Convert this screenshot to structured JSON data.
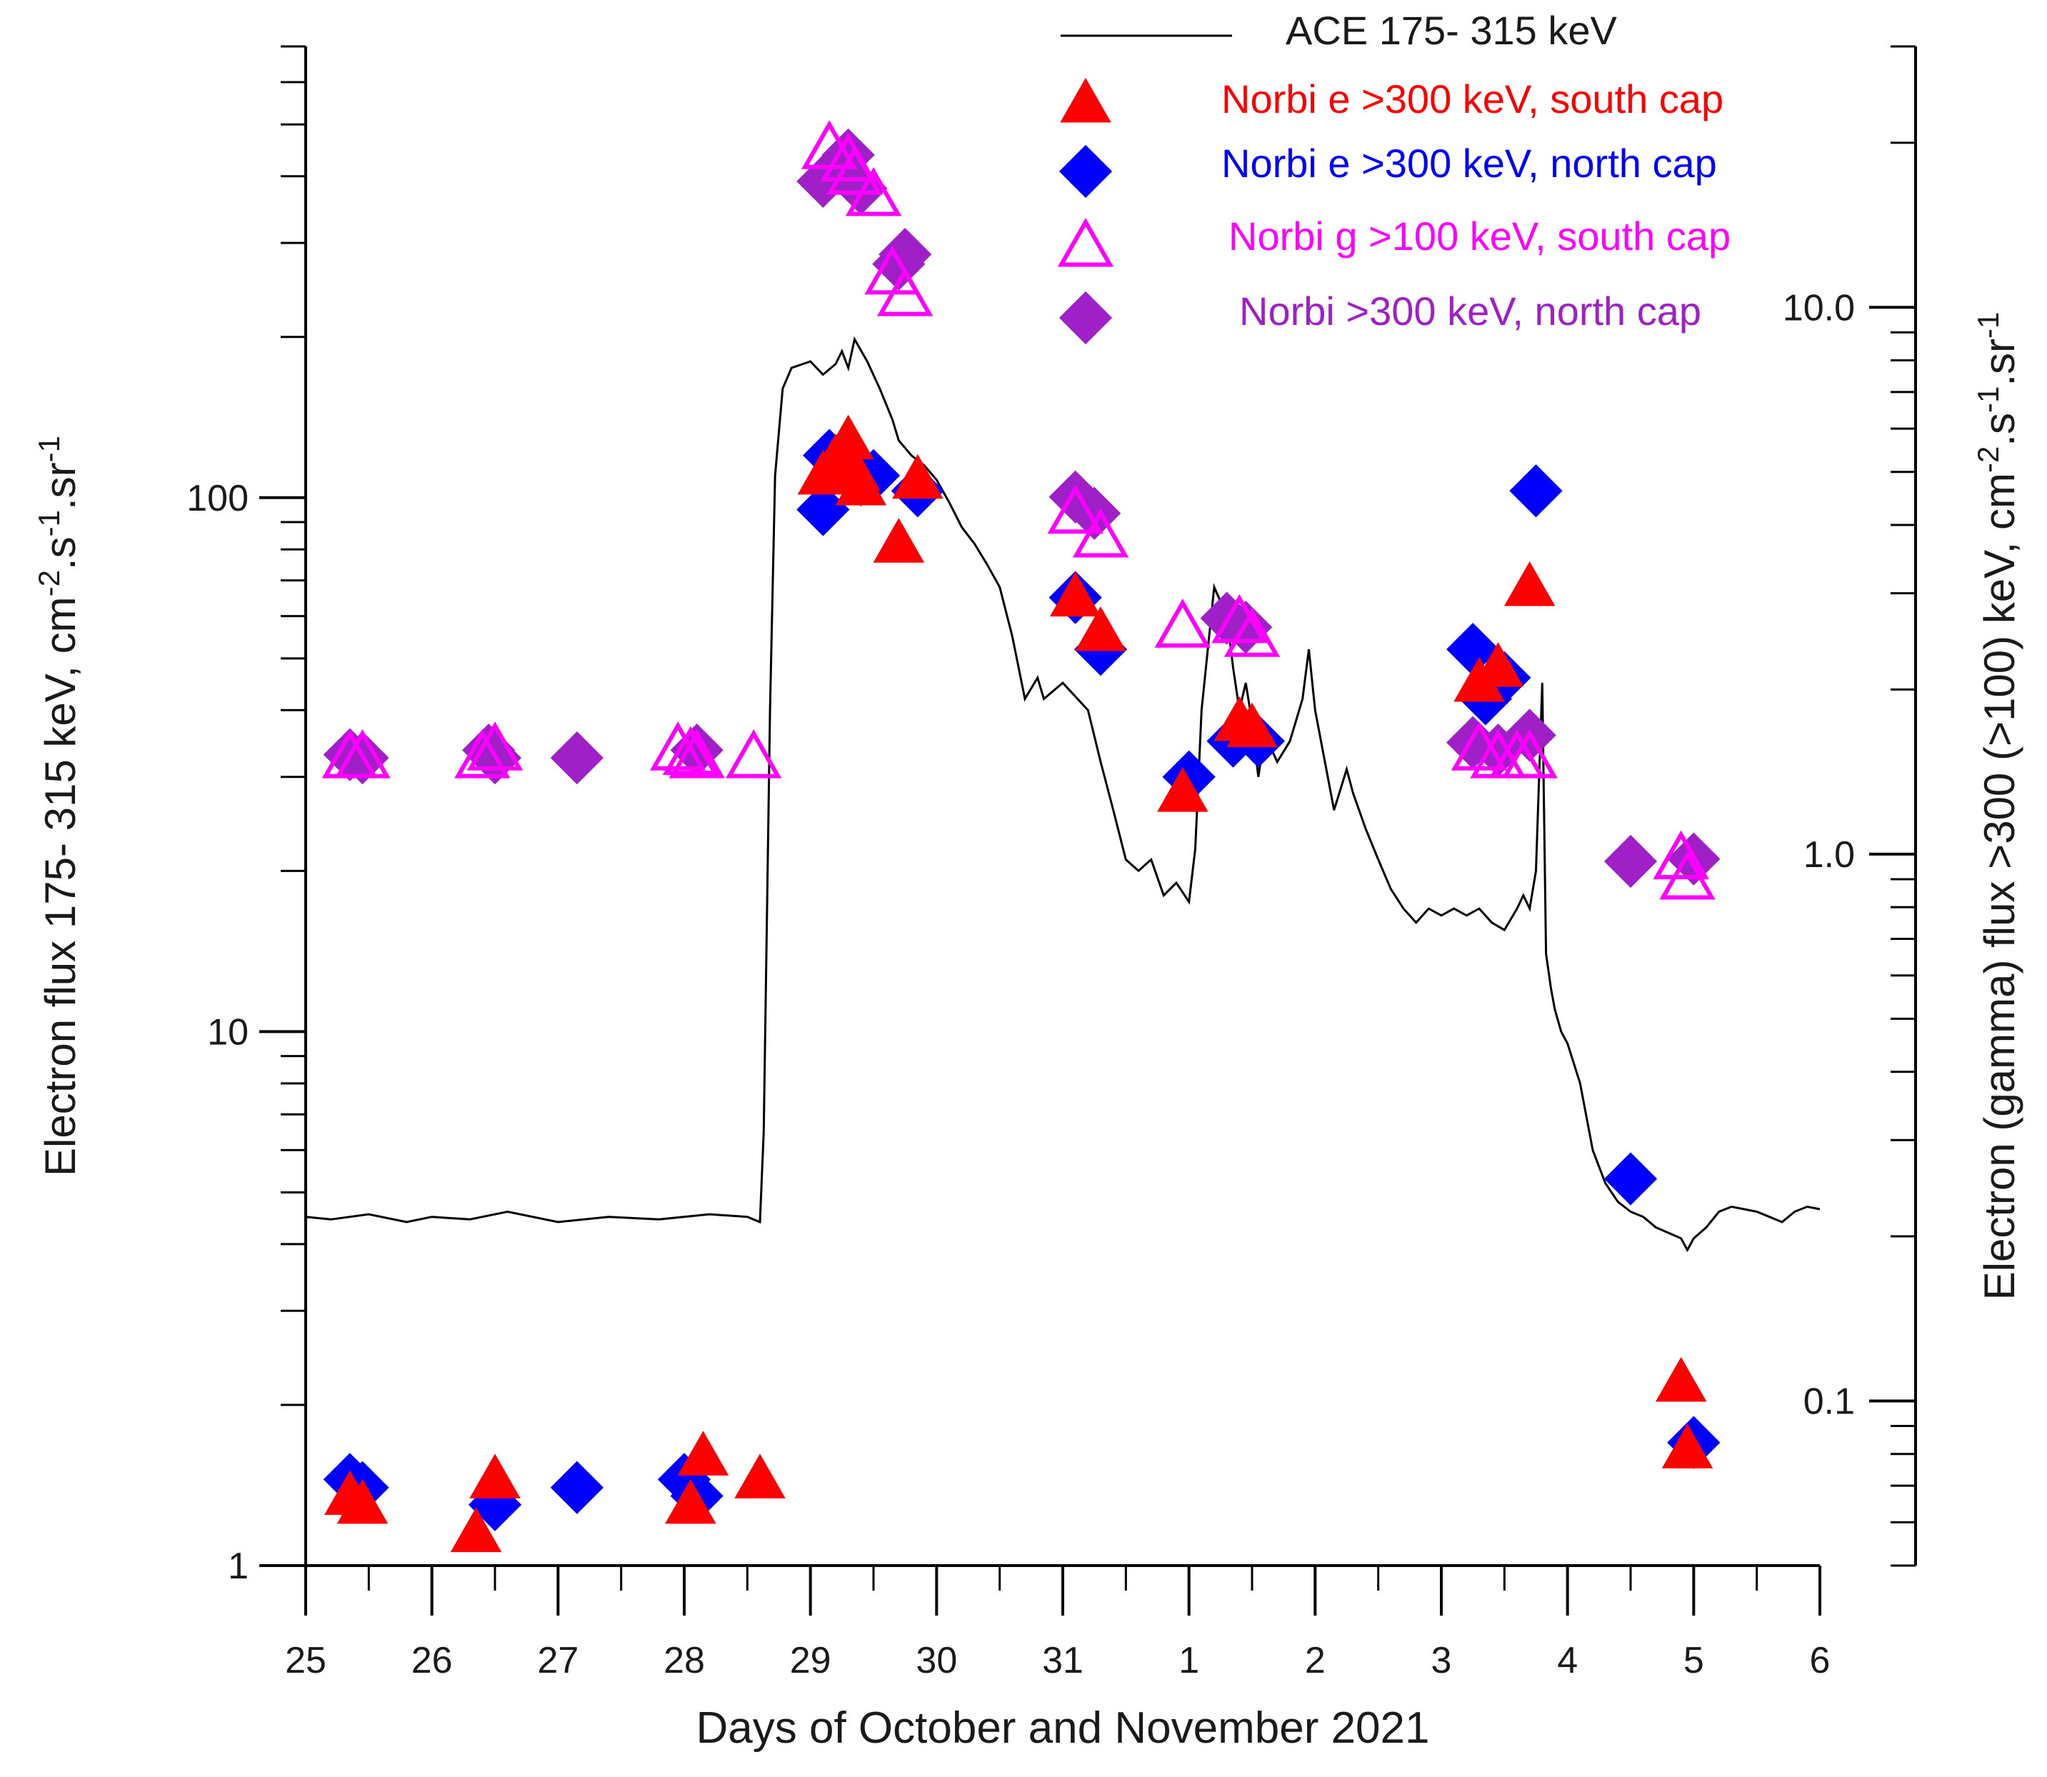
{
  "chart_data": {
    "type": "scatter",
    "xlabel": "Days of October and November 2021",
    "ylabel_left": "Electron flux  175- 315 keV, cm",
    "ylabel_left_units": [
      "-2",
      ".s",
      "-1",
      ".sr",
      "-1"
    ],
    "ylabel_right": "Electron  (gamma) flux  >300 (>100) keV, cm",
    "ylabel_right_units": [
      "-2",
      ".s",
      "-1",
      ".sr",
      "-1"
    ],
    "x_ticks": [
      {
        "x": 0,
        "label": "25"
      },
      {
        "x": 1,
        "label": "26"
      },
      {
        "x": 2,
        "label": "27"
      },
      {
        "x": 3,
        "label": "28"
      },
      {
        "x": 4,
        "label": "29"
      },
      {
        "x": 5,
        "label": "30"
      },
      {
        "x": 6,
        "label": "31"
      },
      {
        "x": 7,
        "label": "1"
      },
      {
        "x": 8,
        "label": "2"
      },
      {
        "x": 9,
        "label": "3"
      },
      {
        "x": 10,
        "label": "4"
      },
      {
        "x": 11,
        "label": "5"
      },
      {
        "x": 12,
        "label": "6"
      }
    ],
    "xlim": [
      0,
      12
    ],
    "y_left": {
      "scale": "log",
      "lim": [
        1,
        700
      ],
      "ticks": [
        {
          "v": 1,
          "label": "1"
        },
        {
          "v": 10,
          "label": "10"
        },
        {
          "v": 100,
          "label": "100"
        }
      ]
    },
    "y_right": {
      "scale": "log",
      "lim": [
        0.05,
        30
      ],
      "ticks": [
        {
          "v": 0.1,
          "label": "0.1"
        },
        {
          "v": 1,
          "label": "1.0"
        },
        {
          "v": 10,
          "label": "10.0"
        }
      ]
    },
    "legend": {
      "position": "top-right",
      "entries": [
        {
          "series": "ace",
          "label": "ACE  175- 315 keV"
        },
        {
          "series": "south_e",
          "label": "Norbi  e >300 keV, south cap"
        },
        {
          "series": "north_e",
          "label": "Norbi e >300 keV, north cap"
        },
        {
          "series": "south_g",
          "label": "Norbi g >100 keV, south cap"
        },
        {
          "series": "north_g",
          "label": "Norbi >300 keV, north cap"
        }
      ]
    },
    "series": {
      "ace": {
        "name": "ACE  175- 315 keV",
        "axis": "left",
        "marker": "line",
        "color": "#000000",
        "points": [
          [
            0.0,
            4.5
          ],
          [
            0.2,
            4.45
          ],
          [
            0.5,
            4.55
          ],
          [
            0.8,
            4.4
          ],
          [
            1.0,
            4.5
          ],
          [
            1.3,
            4.45
          ],
          [
            1.6,
            4.6
          ],
          [
            2.0,
            4.4
          ],
          [
            2.4,
            4.5
          ],
          [
            2.8,
            4.45
          ],
          [
            3.2,
            4.55
          ],
          [
            3.5,
            4.5
          ],
          [
            3.6,
            4.4
          ],
          [
            3.63,
            6.5
          ],
          [
            3.68,
            40
          ],
          [
            3.72,
            110
          ],
          [
            3.78,
            160
          ],
          [
            3.85,
            175
          ],
          [
            4.0,
            180
          ],
          [
            4.1,
            170
          ],
          [
            4.2,
            178
          ],
          [
            4.25,
            188
          ],
          [
            4.3,
            175
          ],
          [
            4.35,
            198
          ],
          [
            4.45,
            180
          ],
          [
            4.55,
            160
          ],
          [
            4.65,
            140
          ],
          [
            4.7,
            128
          ],
          [
            4.8,
            120
          ],
          [
            4.9,
            115
          ],
          [
            5.0,
            108
          ],
          [
            5.1,
            98
          ],
          [
            5.2,
            88
          ],
          [
            5.3,
            82
          ],
          [
            5.4,
            75
          ],
          [
            5.5,
            68
          ],
          [
            5.6,
            55
          ],
          [
            5.7,
            42
          ],
          [
            5.8,
            46
          ],
          [
            5.85,
            42
          ],
          [
            6.0,
            45
          ],
          [
            6.2,
            40
          ],
          [
            6.3,
            32
          ],
          [
            6.4,
            26
          ],
          [
            6.5,
            21
          ],
          [
            6.6,
            20
          ],
          [
            6.7,
            21
          ],
          [
            6.8,
            18
          ],
          [
            6.9,
            19
          ],
          [
            7.0,
            17.5
          ],
          [
            7.05,
            22
          ],
          [
            7.1,
            40
          ],
          [
            7.2,
            68
          ],
          [
            7.3,
            60
          ],
          [
            7.35,
            48
          ],
          [
            7.4,
            40
          ],
          [
            7.45,
            45
          ],
          [
            7.5,
            38
          ],
          [
            7.55,
            30
          ],
          [
            7.6,
            36
          ],
          [
            7.7,
            32
          ],
          [
            7.8,
            35
          ],
          [
            7.9,
            42
          ],
          [
            7.95,
            52
          ],
          [
            8.0,
            40
          ],
          [
            8.1,
            30
          ],
          [
            8.15,
            26
          ],
          [
            8.25,
            31
          ],
          [
            8.3,
            28
          ],
          [
            8.4,
            24
          ],
          [
            8.5,
            21
          ],
          [
            8.6,
            18.5
          ],
          [
            8.7,
            17
          ],
          [
            8.8,
            16
          ],
          [
            8.9,
            17
          ],
          [
            9.0,
            16.5
          ],
          [
            9.1,
            17
          ],
          [
            9.2,
            16.5
          ],
          [
            9.3,
            17
          ],
          [
            9.4,
            16
          ],
          [
            9.5,
            15.5
          ],
          [
            9.6,
            17
          ],
          [
            9.65,
            18
          ],
          [
            9.7,
            17
          ],
          [
            9.75,
            20
          ],
          [
            9.8,
            45
          ],
          [
            9.83,
            14
          ],
          [
            9.87,
            12
          ],
          [
            9.9,
            11
          ],
          [
            9.95,
            10
          ],
          [
            10.0,
            9.5
          ],
          [
            10.1,
            8
          ],
          [
            10.2,
            6
          ],
          [
            10.3,
            5.2
          ],
          [
            10.4,
            4.8
          ],
          [
            10.5,
            4.6
          ],
          [
            10.6,
            4.5
          ],
          [
            10.7,
            4.3
          ],
          [
            10.8,
            4.2
          ],
          [
            10.9,
            4.1
          ],
          [
            10.95,
            3.9
          ],
          [
            11.0,
            4.1
          ],
          [
            11.1,
            4.3
          ],
          [
            11.2,
            4.6
          ],
          [
            11.3,
            4.7
          ],
          [
            11.4,
            4.65
          ],
          [
            11.5,
            4.6
          ],
          [
            11.6,
            4.5
          ],
          [
            11.7,
            4.4
          ],
          [
            11.8,
            4.6
          ],
          [
            11.9,
            4.7
          ],
          [
            12.0,
            4.65
          ]
        ]
      },
      "south_e": {
        "name": "Norbi  e >300 keV, south cap",
        "axis": "left",
        "marker": "triangle-filled",
        "color": "#ff0000",
        "points": [
          [
            0.35,
            1.35
          ],
          [
            0.45,
            1.3
          ],
          [
            1.35,
            1.15
          ],
          [
            1.5,
            1.45
          ],
          [
            3.05,
            1.3
          ],
          [
            3.15,
            1.6
          ],
          [
            3.6,
            1.45
          ],
          [
            4.1,
            110
          ],
          [
            4.2,
            118
          ],
          [
            4.3,
            128
          ],
          [
            4.35,
            112
          ],
          [
            4.4,
            105
          ],
          [
            4.7,
            82
          ],
          [
            4.85,
            108
          ],
          [
            6.1,
            65
          ],
          [
            6.3,
            56
          ],
          [
            6.95,
            28
          ],
          [
            7.4,
            38
          ],
          [
            7.5,
            37
          ],
          [
            9.3,
            45
          ],
          [
            9.45,
            48
          ],
          [
            9.7,
            68
          ],
          [
            10.9,
            2.2
          ],
          [
            10.95,
            1.65
          ]
        ]
      },
      "north_e": {
        "name": "Norbi e >300 keV, north cap",
        "axis": "left",
        "marker": "diamond-filled",
        "color": "#0000ff",
        "points": [
          [
            0.35,
            1.45
          ],
          [
            0.45,
            1.4
          ],
          [
            1.5,
            1.3
          ],
          [
            2.15,
            1.4
          ],
          [
            3.0,
            1.45
          ],
          [
            3.1,
            1.35
          ],
          [
            4.1,
            95
          ],
          [
            4.15,
            120
          ],
          [
            4.4,
            108
          ],
          [
            4.5,
            110
          ],
          [
            4.85,
            103
          ],
          [
            6.1,
            65
          ],
          [
            6.3,
            52
          ],
          [
            7.0,
            30
          ],
          [
            7.35,
            35
          ],
          [
            7.55,
            35
          ],
          [
            9.25,
            52
          ],
          [
            9.35,
            42
          ],
          [
            9.5,
            46
          ],
          [
            9.75,
            103
          ],
          [
            10.5,
            5.3
          ],
          [
            11.0,
            1.7
          ]
        ]
      },
      "south_g": {
        "name": "Norbi g >100 keV, south cap",
        "axis": "right",
        "marker": "triangle-open",
        "color": "#ff00ff",
        "points": [
          [
            0.35,
            1.5
          ],
          [
            0.45,
            1.5
          ],
          [
            1.4,
            1.5
          ],
          [
            1.5,
            1.55
          ],
          [
            2.95,
            1.55
          ],
          [
            3.05,
            1.52
          ],
          [
            3.1,
            1.5
          ],
          [
            3.55,
            1.5
          ],
          [
            4.15,
            19.5
          ],
          [
            4.3,
            18.5
          ],
          [
            4.35,
            17.5
          ],
          [
            4.5,
            16
          ],
          [
            4.65,
            11.5
          ],
          [
            4.75,
            10.5
          ],
          [
            6.1,
            4.2
          ],
          [
            6.3,
            3.8
          ],
          [
            6.95,
            2.6
          ],
          [
            7.4,
            2.65
          ],
          [
            7.5,
            2.5
          ],
          [
            9.3,
            1.55
          ],
          [
            9.45,
            1.5
          ],
          [
            9.6,
            1.5
          ],
          [
            9.7,
            1.5
          ],
          [
            10.9,
            0.98
          ],
          [
            10.95,
            0.9
          ]
        ]
      },
      "north_g": {
        "name": "Norbi >300 keV, north cap",
        "axis": "right",
        "marker": "diamond-filled",
        "color": "#a020c8",
        "points": [
          [
            0.35,
            1.52
          ],
          [
            0.45,
            1.5
          ],
          [
            1.45,
            1.55
          ],
          [
            1.5,
            1.5
          ],
          [
            2.15,
            1.5
          ],
          [
            3.1,
            1.55
          ],
          [
            4.1,
            17
          ],
          [
            4.3,
            19
          ],
          [
            4.4,
            16.5
          ],
          [
            4.7,
            12
          ],
          [
            4.75,
            12.5
          ],
          [
            6.1,
            4.5
          ],
          [
            6.25,
            4.2
          ],
          [
            7.3,
            2.7
          ],
          [
            7.45,
            2.6
          ],
          [
            9.25,
            1.6
          ],
          [
            9.45,
            1.55
          ],
          [
            9.7,
            1.65
          ],
          [
            10.5,
            0.97
          ],
          [
            11.0,
            0.98
          ]
        ]
      }
    }
  }
}
